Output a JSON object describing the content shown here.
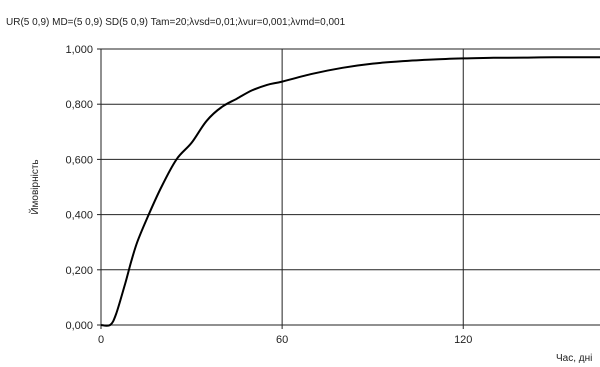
{
  "chart_data": {
    "type": "line",
    "title": "UR(5 0,9)  MD=(5 0,9) SD(5 0,9) Tam=20;λvsd=0,01;λvur=0,001;λvmd=0,001",
    "xlabel": "Час, дні",
    "ylabel": "Ймовірність",
    "xlim": [
      0,
      160
    ],
    "ylim": [
      0,
      1
    ],
    "x_ticks": [
      0,
      60,
      120
    ],
    "x_tick_labels": [
      "0",
      "60",
      "120"
    ],
    "y_ticks": [
      0,
      0.2,
      0.4,
      0.6,
      0.8,
      1.0
    ],
    "y_tick_labels": [
      "0,000",
      "0,200",
      "0,400",
      "0,600",
      "0,800",
      "1,000"
    ],
    "grid": true,
    "series": [
      {
        "color": "#000000",
        "x": [
          0,
          3,
          5,
          8,
          10,
          12,
          15,
          20,
          25,
          30,
          35,
          40,
          45,
          50,
          55,
          60,
          70,
          80,
          90,
          100,
          110,
          120,
          130,
          140,
          150,
          160
        ],
        "y": [
          0.0,
          0.0,
          0.04,
          0.15,
          0.23,
          0.3,
          0.38,
          0.5,
          0.6,
          0.66,
          0.74,
          0.79,
          0.82,
          0.85,
          0.87,
          0.882,
          0.91,
          0.932,
          0.947,
          0.956,
          0.962,
          0.966,
          0.968,
          0.969,
          0.97,
          0.97
        ]
      }
    ]
  }
}
